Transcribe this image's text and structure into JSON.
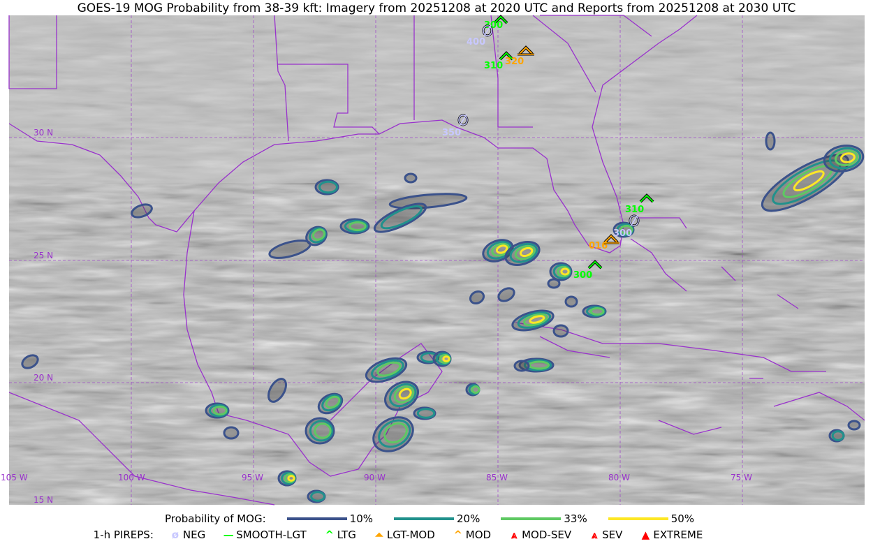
{
  "title": "GOES-19 MOG Probability from 38-39 kft: Imagery from 20251208 at 2020 UTC and Reports from 20251208 at 2030 UTC",
  "map": {
    "lat_labels": [
      "30 N",
      "25 N",
      "20 N",
      "15 N"
    ],
    "lon_labels": [
      "105 W",
      "100 W",
      "95 W",
      "90 W",
      "85 W",
      "80 W",
      "75 W"
    ],
    "colors": {
      "borders": "#9932cc",
      "grid": "#9932cc"
    },
    "reports": [
      {
        "type": "LTG",
        "alt": "300",
        "color": "#00ff00"
      },
      {
        "type": "NEG",
        "alt": "400",
        "color": "#c8c8ff"
      },
      {
        "type": "LTG",
        "alt": "310",
        "color": "#00ff00"
      },
      {
        "type": "MOD",
        "alt": "320",
        "color": "#ffa500"
      },
      {
        "type": "NEG",
        "alt": "350",
        "color": "#c8c8ff"
      },
      {
        "type": "LTG",
        "alt": "310",
        "color": "#00ff00"
      },
      {
        "type": "NEG",
        "alt": "300",
        "color": "#c8c8ff"
      },
      {
        "type": "MOD",
        "alt": "016",
        "color": "#ffa500"
      },
      {
        "type": "LTG",
        "alt": "300",
        "color": "#00ff00"
      }
    ]
  },
  "legend": {
    "prob_label": "Probability of MOG:",
    "prob_levels": [
      {
        "label": "10%",
        "color": "#3b528b"
      },
      {
        "label": "20%",
        "color": "#21918c"
      },
      {
        "label": "33%",
        "color": "#5ec962"
      },
      {
        "label": "50%",
        "color": "#fde725"
      }
    ],
    "pirep_label": "1-h PIREPS:",
    "pireps": [
      {
        "label": "NEG",
        "icon": "neg-icon",
        "color": "#c8c8ff",
        "glyph": "ø"
      },
      {
        "label": "SMOOTH-LGT",
        "icon": "smooth-lgt-icon",
        "color": "#00ff00",
        "glyph": "—"
      },
      {
        "label": "LTG",
        "icon": "ltg-icon",
        "color": "#00ff00",
        "glyph": "^"
      },
      {
        "label": "LGT-MOD",
        "icon": "lgt-mod-icon",
        "color": "#ffa500",
        "glyph": "⏶"
      },
      {
        "label": "MOD",
        "icon": "mod-icon",
        "color": "#ffa500",
        "glyph": "^"
      },
      {
        "label": "MOD-SEV",
        "icon": "mod-sev-icon",
        "color": "#ff0000",
        "glyph": "⩓"
      },
      {
        "label": "SEV",
        "icon": "sev-icon",
        "color": "#ff0000",
        "glyph": "⩓"
      },
      {
        "label": "EXTREME",
        "icon": "extreme-icon",
        "color": "#ff0000",
        "glyph": "▲"
      }
    ]
  }
}
